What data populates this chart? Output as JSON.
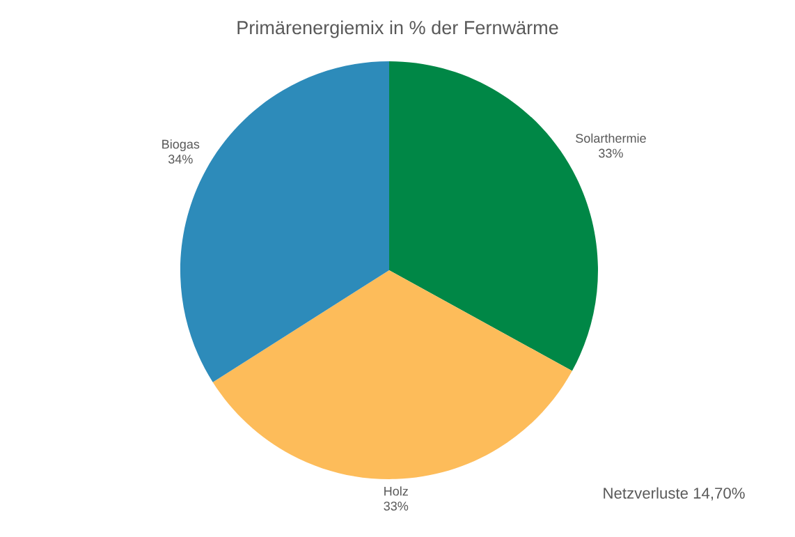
{
  "chart_data": {
    "type": "pie",
    "title": "Primärenergiemix in % der Fernwärme",
    "categories": [
      "Solarthermie",
      "Holz",
      "Biogas"
    ],
    "values": [
      33,
      33,
      34
    ],
    "value_labels": [
      "33%",
      "33%",
      "34%"
    ],
    "colors": [
      "#008746",
      "#fdbc5a",
      "#2d8bba"
    ],
    "annotations": [
      "Netzverluste 14,70%"
    ]
  }
}
